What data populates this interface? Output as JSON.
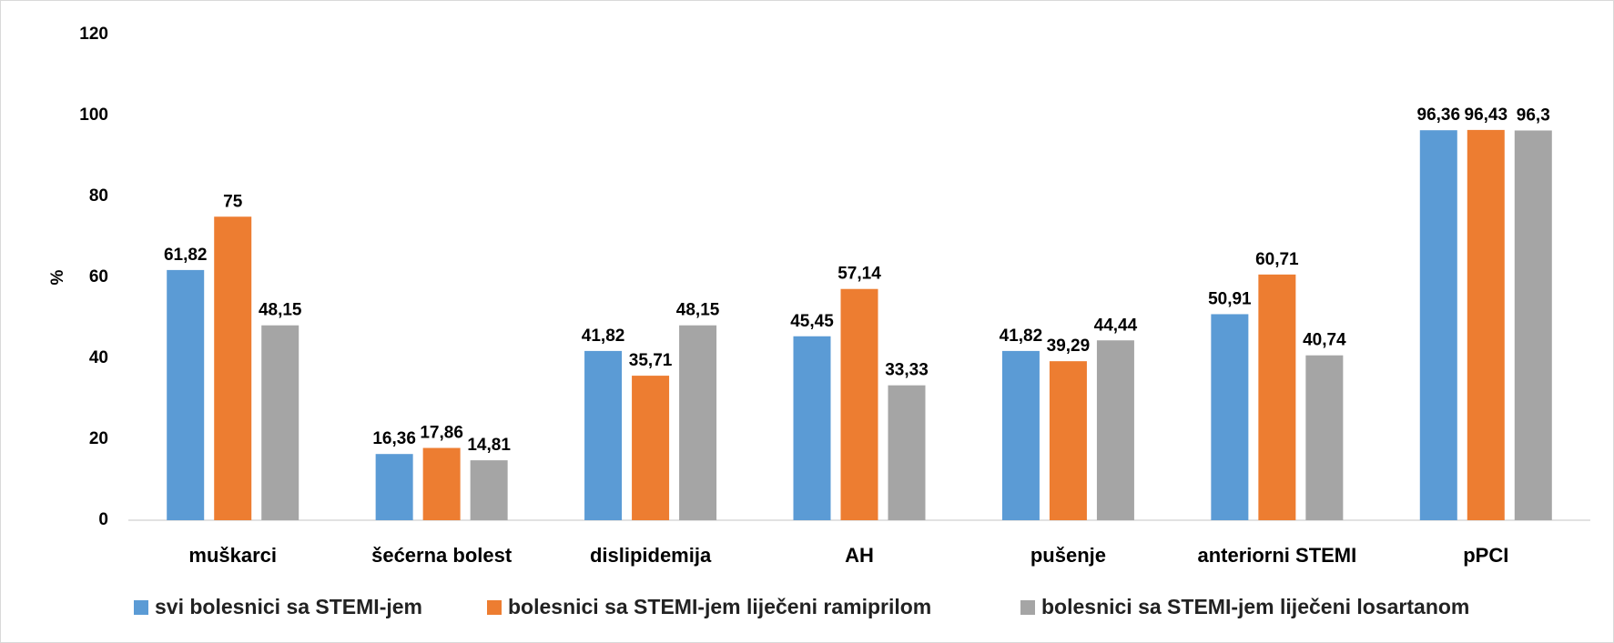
{
  "chart_data": {
    "type": "bar",
    "y_label": "%",
    "categories": [
      "muškarci",
      "šećerna bolest",
      "dislipidemija",
      "AH",
      "pušenje",
      "anteriorni STEMI",
      "pPCI"
    ],
    "series": [
      {
        "name": "svi bolesnici sa STEMI-jem",
        "color": "#5b9bd5",
        "values": [
          61.82,
          16.36,
          41.82,
          45.45,
          41.82,
          50.91,
          96.36
        ],
        "value_labels": [
          "61,82",
          "16,36",
          "41,82",
          "45,45",
          "41,82",
          "50,91",
          "96,36"
        ]
      },
      {
        "name": "bolesnici sa STEMI-jem liječeni ramiprilom",
        "color": "#ed7d31",
        "values": [
          75,
          17.86,
          35.71,
          57.14,
          39.29,
          60.71,
          96.43
        ],
        "value_labels": [
          "75",
          "17,86",
          "35,71",
          "57,14",
          "39,29",
          "60,71",
          "96,43"
        ]
      },
      {
        "name": "bolesnici sa STEMI-jem liječeni losartanom",
        "color": "#a5a5a5",
        "values": [
          48.15,
          14.81,
          48.15,
          33.33,
          44.44,
          40.74,
          96.3
        ],
        "value_labels": [
          "48,15",
          "14,81",
          "48,15",
          "33,33",
          "44,44",
          "40,74",
          "96,3"
        ]
      }
    ],
    "ylim": [
      0,
      120
    ],
    "yticks": [
      0,
      20,
      40,
      60,
      80,
      100,
      120
    ],
    "grid": false,
    "legend": "bottom"
  }
}
